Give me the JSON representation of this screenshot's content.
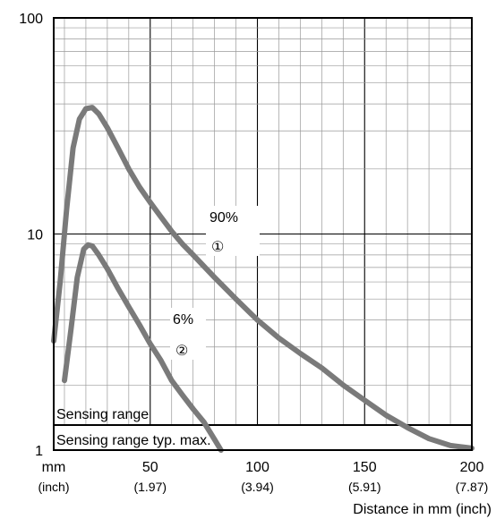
{
  "chart_data": {
    "type": "line",
    "xlabel": "Distance in mm (inch)",
    "x_unit_label": "mm",
    "x_unit_sub": "(inch)",
    "xlim": [
      5,
      200
    ],
    "ylim": [
      1,
      100
    ],
    "y_scale": "log",
    "grid": true,
    "x_ticks": [
      {
        "value": 50,
        "label": "50",
        "sub": "(1.97)"
      },
      {
        "value": 100,
        "label": "100",
        "sub": "(3.94)"
      },
      {
        "value": 150,
        "label": "150",
        "sub": "(5.91)"
      },
      {
        "value": 200,
        "label": "200",
        "sub": "(7.87)"
      }
    ],
    "y_ticks": [
      {
        "value": 1,
        "label": "1"
      },
      {
        "value": 10,
        "label": "10"
      },
      {
        "value": 100,
        "label": "100"
      }
    ],
    "series": [
      {
        "name": "90%",
        "marker": "①",
        "color": "#7a7a7a",
        "x": [
          5,
          8,
          11,
          14,
          17,
          20,
          23,
          26,
          30,
          35,
          40,
          45,
          50,
          55,
          60,
          65,
          70,
          80,
          90,
          100,
          110,
          120,
          130,
          140,
          150,
          160,
          170,
          180,
          190,
          200
        ],
        "y": [
          3.2,
          6.0,
          13.0,
          25.0,
          34.0,
          38.0,
          38.5,
          36.0,
          31.0,
          25.0,
          20.0,
          16.5,
          14.0,
          12.0,
          10.3,
          9.0,
          8.0,
          6.3,
          5.0,
          4.0,
          3.3,
          2.8,
          2.4,
          2.0,
          1.7,
          1.45,
          1.27,
          1.13,
          1.05,
          1.02
        ]
      },
      {
        "name": "6%",
        "marker": "②",
        "color": "#7a7a7a",
        "x": [
          10,
          13,
          16,
          19,
          21,
          23,
          26,
          30,
          35,
          40,
          45,
          50,
          55,
          60,
          65,
          70,
          75,
          80,
          83
        ],
        "y": [
          2.1,
          3.6,
          6.3,
          8.5,
          8.9,
          8.8,
          8.0,
          6.9,
          5.6,
          4.6,
          3.8,
          3.1,
          2.6,
          2.1,
          1.8,
          1.55,
          1.35,
          1.12,
          1.0
        ]
      }
    ],
    "annotations": {
      "s1_label": "90%",
      "s1_marker": "①",
      "s2_label": "6%",
      "s2_marker": "②"
    },
    "reference_lines": [
      {
        "y": 1.35,
        "label": "Sensing range"
      },
      {
        "y": 1.0,
        "label": "Sensing range typ. max."
      }
    ]
  }
}
